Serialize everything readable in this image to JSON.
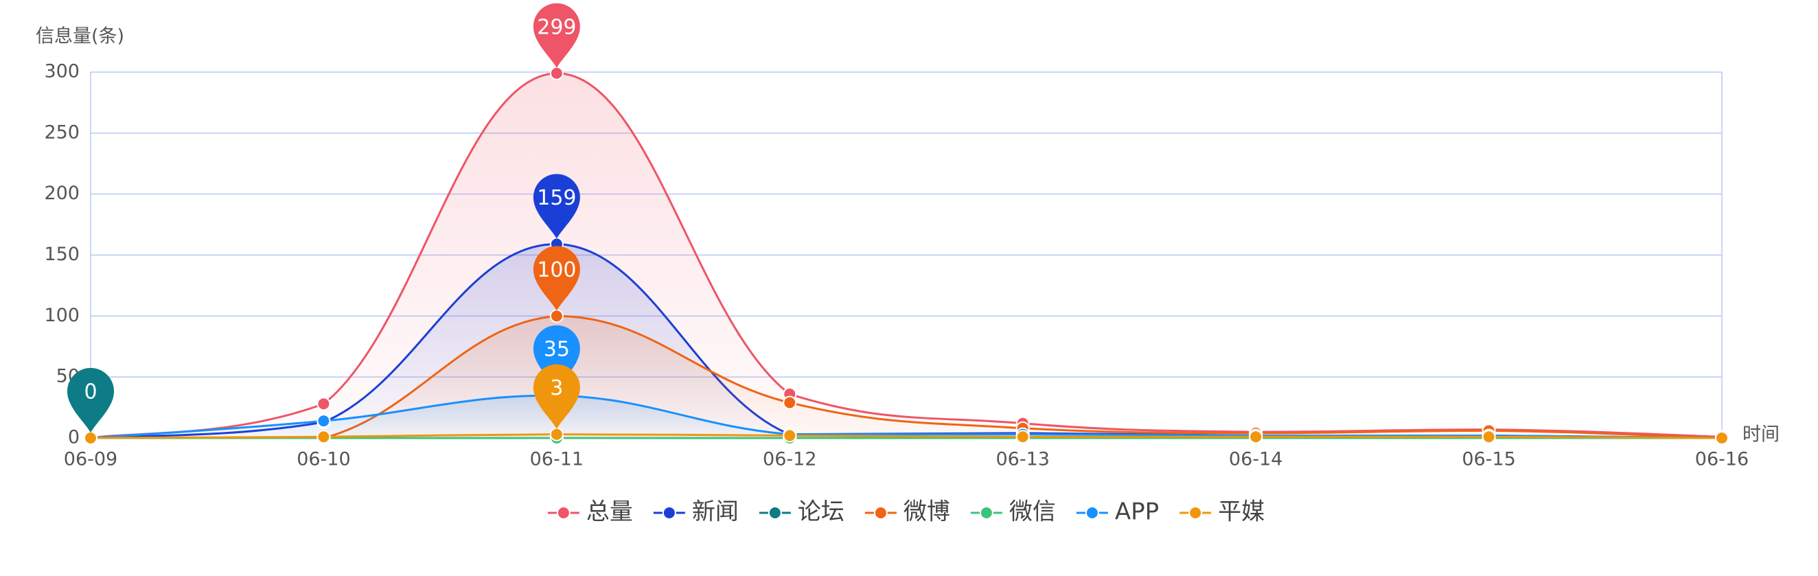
{
  "chart_data": {
    "type": "line",
    "y_axis_title": "信息量(条)",
    "x_axis_title": "时间",
    "categories": [
      "06-09",
      "06-10",
      "06-11",
      "06-12",
      "06-13",
      "06-14",
      "06-15",
      "06-16"
    ],
    "series": [
      {
        "name": "总量",
        "color": "#ee5566",
        "area": true,
        "values": [
          0,
          28,
          299,
          36,
          12,
          5,
          7,
          1
        ]
      },
      {
        "name": "新闻",
        "color": "#1a3fd6",
        "area": true,
        "values": [
          0,
          13,
          159,
          3,
          4,
          2,
          2,
          0
        ]
      },
      {
        "name": "论坛",
        "color": "#0e7c86",
        "area": false,
        "values": [
          0,
          0,
          0,
          0,
          0,
          0,
          0,
          0
        ]
      },
      {
        "name": "微博",
        "color": "#ef6415",
        "area": true,
        "values": [
          0,
          0,
          100,
          29,
          8,
          4,
          6,
          0
        ]
      },
      {
        "name": "微信",
        "color": "#3cc47c",
        "area": false,
        "values": [
          0,
          0,
          0,
          0,
          0,
          0,
          0,
          0
        ]
      },
      {
        "name": "APP",
        "color": "#1890ff",
        "area": true,
        "values": [
          0,
          14,
          35,
          3,
          3,
          2,
          2,
          0
        ]
      },
      {
        "name": "平媒",
        "color": "#f0960c",
        "area": false,
        "values": [
          0,
          1,
          3,
          2,
          1,
          1,
          1,
          0
        ]
      }
    ],
    "ylim": [
      0,
      300
    ],
    "yticks": [
      0,
      50,
      100,
      150,
      200,
      250,
      300
    ],
    "grid": true,
    "legend": "bottom"
  }
}
